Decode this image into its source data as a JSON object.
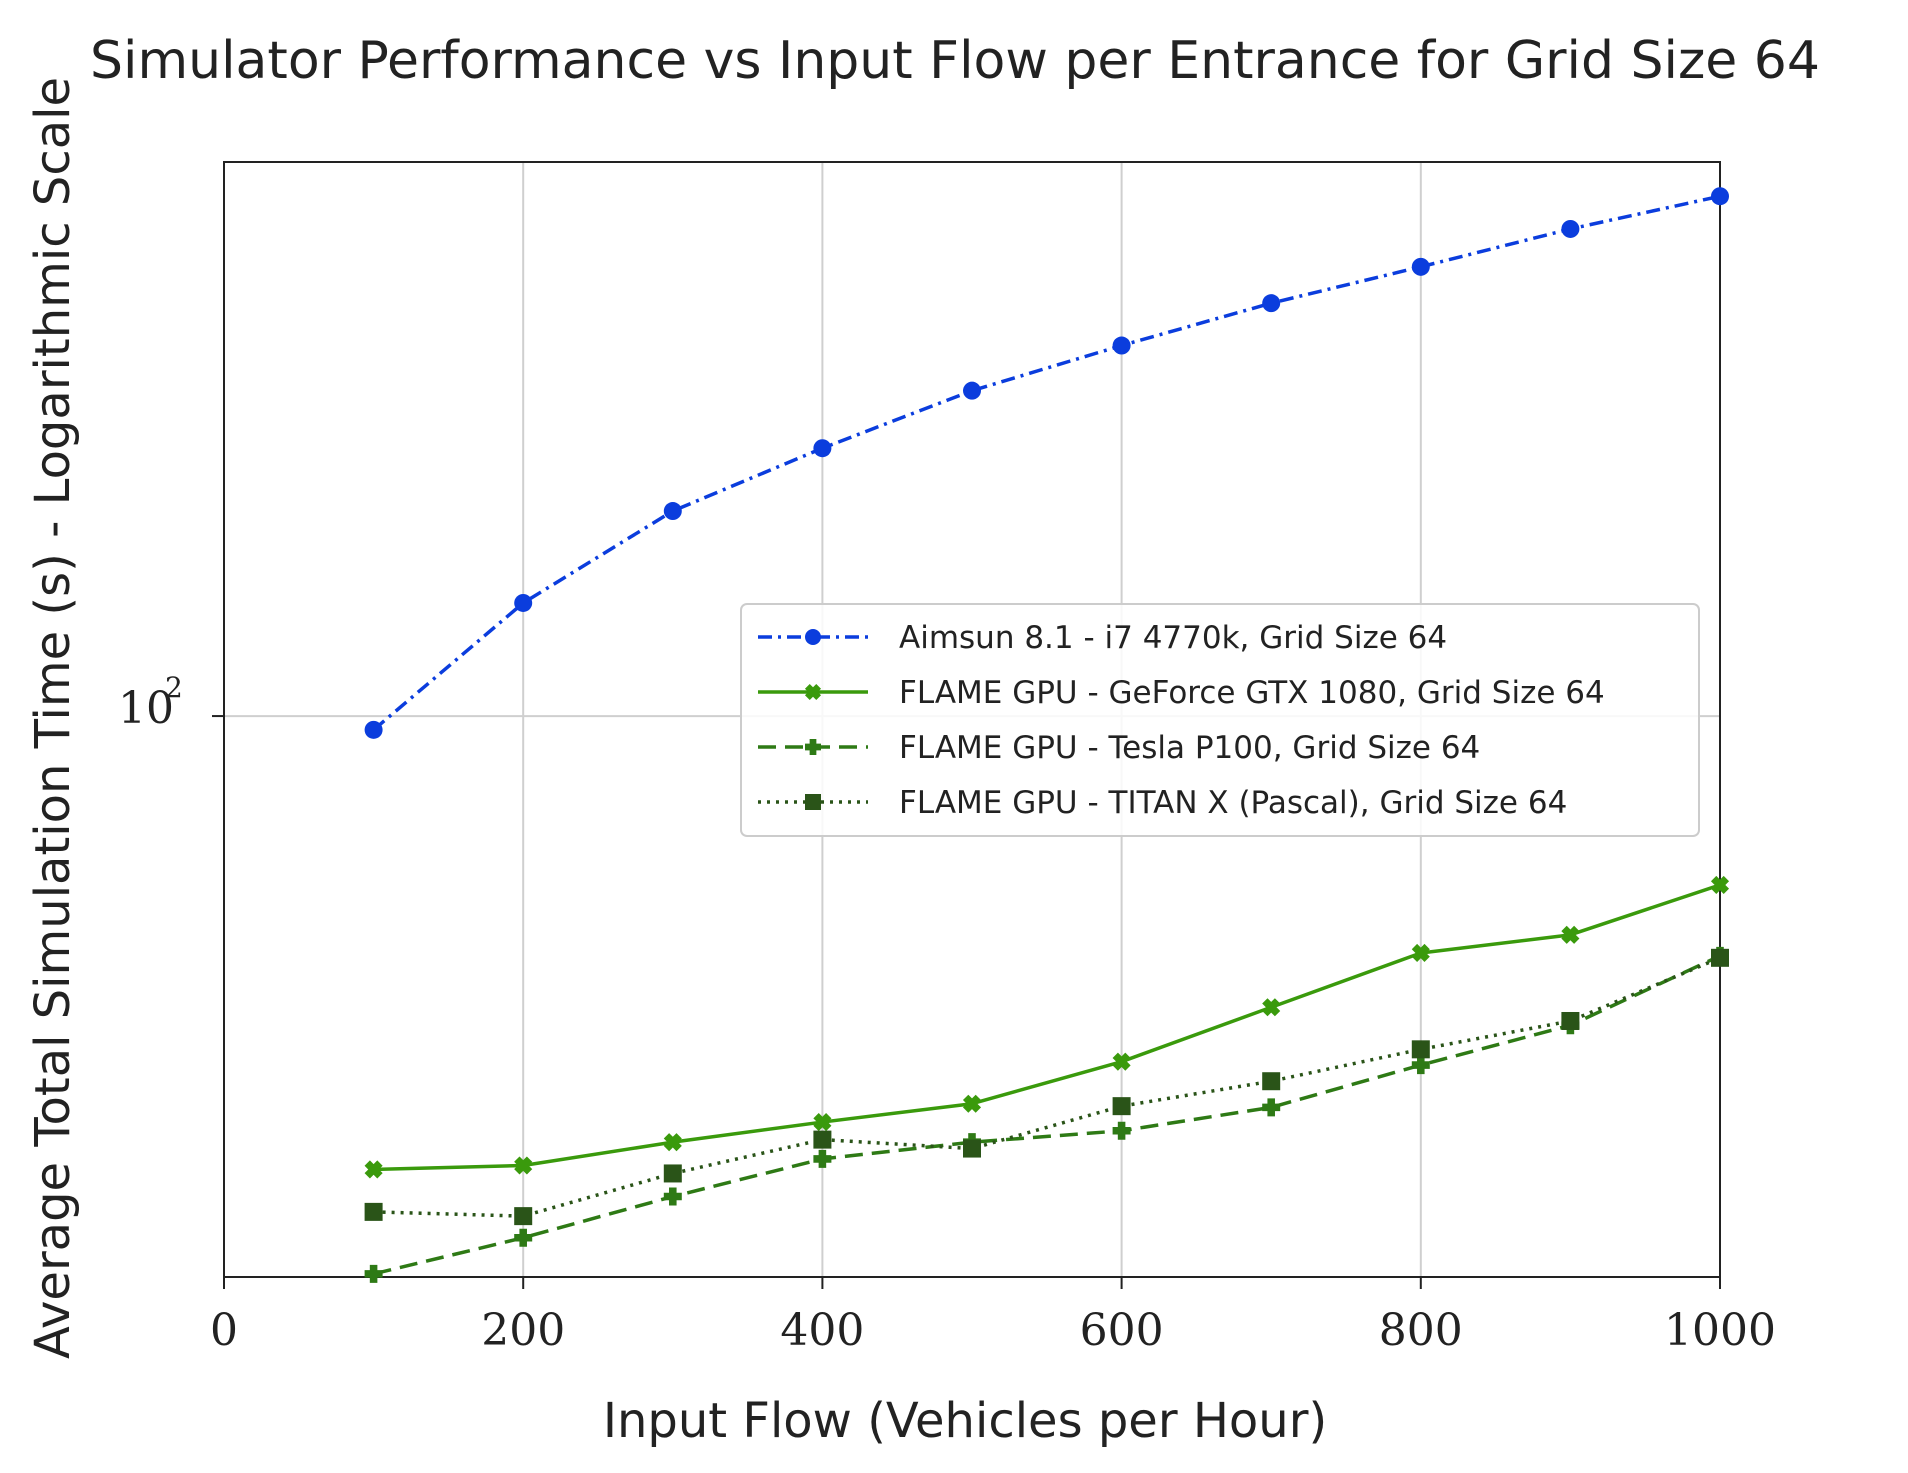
{
  "chart_data": {
    "type": "line",
    "title": "Simulator Performance vs Input Flow per Entrance for Grid Size 64",
    "xlabel": "Input Flow (Vehicles per Hour)",
    "ylabel": "Average Total Simulation Time (s) - Logarithmic Scale",
    "x_scale": "linear",
    "y_scale": "log",
    "xlim": [
      0,
      1000
    ],
    "ylim": [
      44,
      225
    ],
    "x_ticks": [
      0,
      200,
      400,
      600,
      800,
      1000
    ],
    "x_tick_labels": [
      "0",
      "200",
      "400",
      "600",
      "800",
      "1000"
    ],
    "y_ticks": [
      100
    ],
    "y_tick_labels": [
      "10",
      "2"
    ],
    "grid": true,
    "legend_position": "center-right",
    "x": [
      100,
      200,
      300,
      400,
      500,
      600,
      700,
      800,
      900,
      1000
    ],
    "series": [
      {
        "name": "Aimsun 8.1 - i7 4770k, Grid Size 64",
        "color": "#0b3ddd",
        "line_style": "dash-dot",
        "marker": "circle",
        "values": [
          98,
          118,
          135,
          148,
          161,
          172,
          183,
          193,
          204,
          214
        ]
      },
      {
        "name": "FLAME GPU - GeForce GTX 1080, Grid Size 64",
        "color": "#3a9a0c",
        "line_style": "solid",
        "marker": "x-filled",
        "values": [
          51.5,
          51.8,
          53.6,
          55.2,
          56.7,
          60.3,
          65.3,
          70.7,
          72.6,
          78.1
        ]
      },
      {
        "name": "FLAME GPU - Tesla P100, Grid Size 64",
        "color": "#2e7a15",
        "line_style": "dashed",
        "marker": "plus-filled",
        "values": [
          44.2,
          46.6,
          49.5,
          52.3,
          53.6,
          54.5,
          56.4,
          60.0,
          63.6,
          70.4
        ]
      },
      {
        "name": "FLAME GPU - TITAN X (Pascal), Grid Size 64",
        "color": "#2a5418",
        "line_style": "dotted",
        "marker": "square",
        "values": [
          48.4,
          48.1,
          51.2,
          53.8,
          53.1,
          56.5,
          58.6,
          61.4,
          64.0,
          70.2
        ]
      }
    ]
  }
}
